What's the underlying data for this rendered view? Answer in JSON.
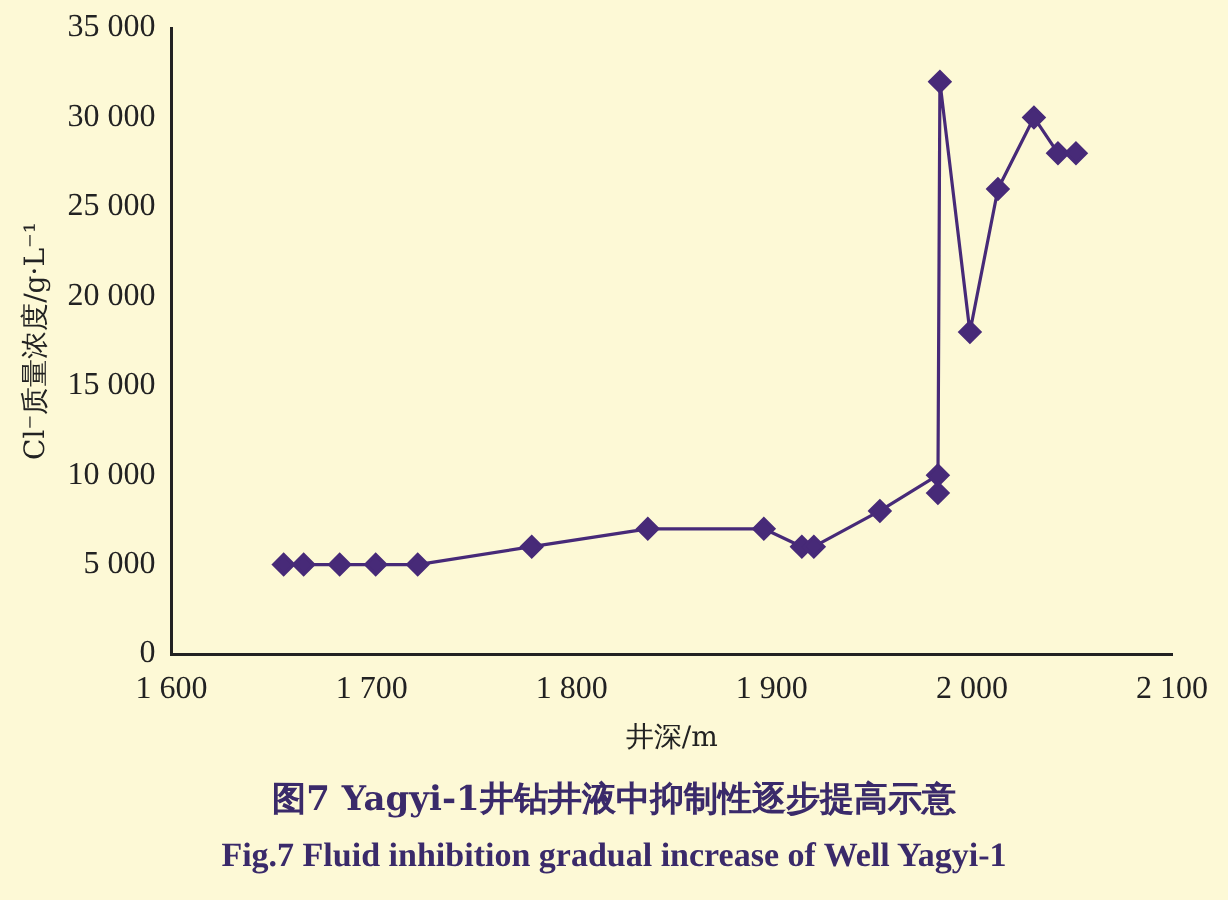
{
  "chart_data": {
    "type": "line",
    "title": "图7  Yagyi-1井钻井液中抑制性逐步提高示意",
    "subtitle": "Fig.7  Fluid inhibition gradual increase of Well Yagyi-1",
    "xlabel": "井深/m",
    "ylabel": "Cl⁻质量浓度/g·L⁻¹",
    "x": [
      1656,
      1666,
      1684,
      1702,
      1723,
      1780,
      1838,
      1896,
      1915,
      1921,
      1954,
      1983,
      1983,
      1984,
      1999,
      2013,
      2031,
      2043,
      2052
    ],
    "series": [
      {
        "color": "#472a78",
        "values": [
          5000,
          5000,
          5000,
          5000,
          5000,
          6000,
          7000,
          7000,
          6000,
          6000,
          8000,
          10000,
          9000,
          32000,
          18000,
          26000,
          30000,
          28000,
          28000
        ]
      }
    ],
    "xlim": [
      1600,
      2100
    ],
    "xticks": [
      {
        "value": 1600,
        "label": "1 600"
      },
      {
        "value": 1700,
        "label": "1 700"
      },
      {
        "value": 1800,
        "label": "1 800"
      },
      {
        "value": 1900,
        "label": "1 900"
      },
      {
        "value": 2000,
        "label": "2 000"
      },
      {
        "value": 2100,
        "label": "2 100"
      }
    ],
    "ylim": [
      0,
      35000
    ],
    "yticks": [
      0,
      {
        "value": 5000,
        "label": "5 000"
      },
      {
        "value": 10000,
        "label": "10 000"
      },
      {
        "value": 15000,
        "label": "15 000"
      },
      {
        "value": 20000,
        "label": "20 000"
      },
      {
        "value": 25000,
        "label": "25 000"
      },
      {
        "value": 30000,
        "label": "30 000"
      },
      {
        "value": 35000,
        "label": "35 000"
      }
    ],
    "grid": false,
    "legend": false,
    "marker": "diamond",
    "line_style": "solid"
  }
}
